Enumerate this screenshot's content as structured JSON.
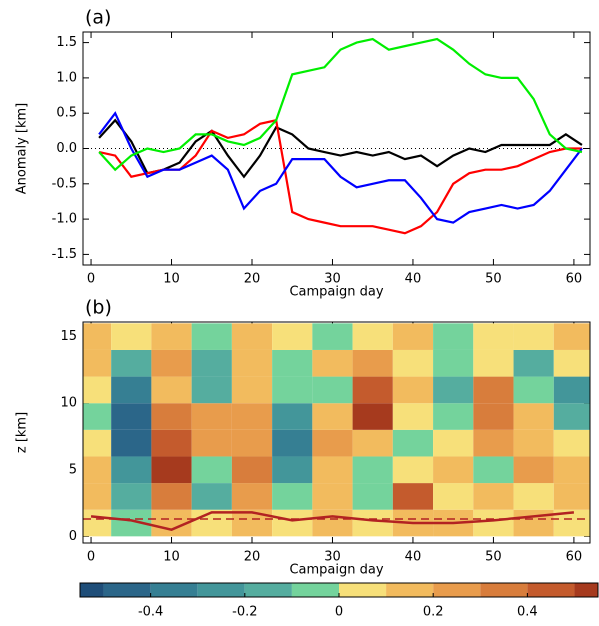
{
  "chart_data": [
    {
      "type": "line",
      "panel_label": "(a)",
      "y_label": "Anomaly [km]",
      "x_label": "Campaign day",
      "x": [
        1,
        3,
        5,
        7,
        9,
        11,
        13,
        15,
        17,
        19,
        21,
        23,
        25,
        27,
        29,
        31,
        33,
        35,
        37,
        39,
        41,
        43,
        45,
        47,
        49,
        51,
        53,
        55,
        57,
        59,
        61
      ],
      "series": [
        {
          "color": "#000000",
          "values": [
            0.15,
            0.4,
            0.1,
            -0.35,
            -0.3,
            -0.2,
            0.1,
            0.25,
            -0.1,
            -0.4,
            -0.1,
            0.3,
            0.2,
            0.0,
            -0.05,
            -0.1,
            -0.05,
            -0.1,
            -0.05,
            -0.15,
            -0.1,
            -0.25,
            -0.1,
            0.0,
            -0.05,
            0.05,
            0.05,
            0.05,
            0.05,
            0.2,
            0.05
          ]
        },
        {
          "color": "#ff0000",
          "values": [
            -0.05,
            -0.1,
            -0.4,
            -0.35,
            -0.3,
            -0.3,
            -0.1,
            0.25,
            0.15,
            0.2,
            0.35,
            0.4,
            -0.9,
            -1.0,
            -1.05,
            -1.1,
            -1.1,
            -1.1,
            -1.15,
            -1.2,
            -1.1,
            -0.9,
            -0.5,
            -0.35,
            -0.3,
            -0.3,
            -0.25,
            -0.15,
            -0.05,
            0.0,
            0.0
          ]
        },
        {
          "color": "#0000ff",
          "values": [
            0.2,
            0.5,
            0.0,
            -0.4,
            -0.3,
            -0.3,
            -0.2,
            -0.1,
            -0.3,
            -0.85,
            -0.6,
            -0.5,
            -0.15,
            -0.15,
            -0.15,
            -0.4,
            -0.55,
            -0.5,
            -0.45,
            -0.45,
            -0.7,
            -1.0,
            -1.05,
            -0.9,
            -0.85,
            -0.8,
            -0.85,
            -0.8,
            -0.6,
            -0.3,
            0.0
          ]
        },
        {
          "color": "#00ee00",
          "values": [
            -0.05,
            -0.3,
            -0.1,
            0.0,
            -0.05,
            0.0,
            0.2,
            0.2,
            0.1,
            0.05,
            0.15,
            0.4,
            1.05,
            1.1,
            1.15,
            1.4,
            1.5,
            1.55,
            1.4,
            1.45,
            1.5,
            1.55,
            1.4,
            1.2,
            1.05,
            1.0,
            1.0,
            0.7,
            0.2,
            0.0,
            -0.05
          ]
        }
      ],
      "reference_line": 0,
      "xlim": [
        -1,
        62
      ],
      "xticks": [
        0,
        10,
        20,
        30,
        40,
        50,
        60
      ],
      "ylim": [
        -1.65,
        1.65
      ],
      "yticks": [
        -1.5,
        {
          "value": -1.0,
          "label": "-1.0"
        },
        -0.5,
        {
          "value": 0.0,
          "label": "0.0"
        },
        0.5,
        {
          "value": 1.0,
          "label": "1.0"
        },
        1.5
      ]
    },
    {
      "type": "contour",
      "panel_label": "(b)",
      "y_label": "z [km]",
      "x_label": "Campaign day",
      "x": [
        0,
        5,
        10,
        15,
        20,
        25,
        30,
        35,
        40,
        45,
        50,
        55,
        60
      ],
      "z": [
        1,
        3,
        5,
        7,
        9,
        11,
        13,
        15
      ],
      "field": [
        [
          0.0,
          -0.1,
          0.1,
          0.0,
          0.1,
          0.0,
          0.1,
          0.0,
          0.1,
          0.1,
          0.0,
          0.1,
          0.0
        ],
        [
          0.1,
          -0.2,
          0.3,
          -0.2,
          0.2,
          -0.1,
          0.1,
          -0.1,
          0.4,
          0.0,
          0.1,
          0.0,
          0.1
        ],
        [
          0.1,
          -0.3,
          0.5,
          -0.1,
          0.3,
          -0.3,
          0.1,
          -0.1,
          0.0,
          0.1,
          -0.1,
          0.2,
          0.1
        ],
        [
          0.0,
          -0.5,
          0.4,
          0.2,
          0.2,
          -0.4,
          0.2,
          0.1,
          -0.1,
          0.0,
          0.2,
          0.1,
          0.0
        ],
        [
          -0.1,
          -0.5,
          0.3,
          0.2,
          0.2,
          -0.3,
          0.1,
          0.5,
          0.0,
          -0.1,
          0.3,
          0.1,
          -0.2
        ],
        [
          0.0,
          -0.4,
          0.1,
          -0.2,
          0.1,
          -0.1,
          -0.1,
          0.4,
          0.1,
          -0.2,
          0.3,
          -0.1,
          -0.3
        ],
        [
          0.1,
          -0.2,
          0.2,
          -0.2,
          0.1,
          -0.1,
          0.1,
          0.2,
          0.0,
          -0.1,
          0.0,
          -0.2,
          0.0
        ],
        [
          0.1,
          0.0,
          0.1,
          -0.1,
          0.1,
          0.0,
          -0.1,
          0.0,
          0.1,
          -0.1,
          0.0,
          0.0,
          0.1
        ]
      ],
      "line": {
        "color": "#b22222",
        "values": [
          1.5,
          1.2,
          0.5,
          1.8,
          1.8,
          1.2,
          1.5,
          1.2,
          1.0,
          1.0,
          1.2,
          1.5,
          1.8
        ]
      },
      "dashed_level": 1.3,
      "xlim": [
        -1,
        62
      ],
      "xticks": [
        0,
        10,
        20,
        30,
        40,
        50,
        60
      ],
      "ylim": [
        -0.5,
        16.1
      ],
      "yticks": [
        0,
        5,
        10,
        15
      ],
      "levels": [
        -0.6,
        -0.5,
        -0.4,
        -0.3,
        -0.2,
        -0.1,
        0,
        0.1,
        0.2,
        0.3,
        0.4,
        0.5,
        0.6
      ],
      "colors": [
        "#1f4e79",
        "#2b6689",
        "#367f93",
        "#43969a",
        "#55ad9f",
        "#74d39c",
        "#f7e07a",
        "#f2bb5e",
        "#e89c4c",
        "#d87d3c",
        "#c45b2d",
        "#a63a1e"
      ],
      "clim": [
        -0.55,
        0.55
      ],
      "cticks": [
        -0.4,
        -0.2,
        0,
        0.2,
        0.4
      ]
    }
  ]
}
